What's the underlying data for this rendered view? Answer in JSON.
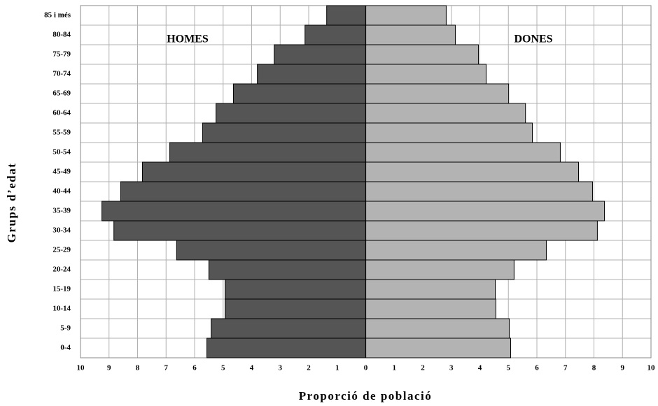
{
  "chart_data": {
    "type": "pyramid",
    "x_label": "Proporció de població",
    "y_label": "Grups d’edat",
    "categories": [
      "0-4",
      "5-9",
      "10-14",
      "15-19",
      "20-24",
      "25-29",
      "30-34",
      "35-39",
      "40-44",
      "45-49",
      "50-54",
      "55-59",
      "60-64",
      "65-69",
      "70-74",
      "75-79",
      "80-84",
      "85 i més"
    ],
    "series": [
      {
        "name": "HOMES",
        "color": "#555555",
        "values": [
          -5.57,
          -5.42,
          -4.93,
          -4.93,
          -5.5,
          -6.63,
          -8.83,
          -9.25,
          -8.59,
          -7.83,
          -6.87,
          -5.72,
          -5.25,
          -4.64,
          -3.8,
          -3.21,
          -2.13,
          -1.37
        ]
      },
      {
        "name": "DONES",
        "color": "#b3b3b3",
        "values": [
          5.08,
          5.03,
          4.56,
          4.54,
          5.2,
          6.33,
          8.12,
          8.37,
          7.95,
          7.46,
          6.82,
          5.84,
          5.6,
          5.01,
          4.22,
          3.95,
          3.14,
          2.82
        ]
      }
    ],
    "xlim": [
      -10,
      10
    ],
    "xticks": [
      {
        "value": -10,
        "label": "10"
      },
      {
        "value": -9,
        "label": "9"
      },
      {
        "value": -8,
        "label": "8"
      },
      {
        "value": -7,
        "label": "7"
      },
      {
        "value": -6,
        "label": "6"
      },
      {
        "value": -5,
        "label": "5"
      },
      {
        "value": -4,
        "label": "4"
      },
      {
        "value": -3,
        "label": "3"
      },
      {
        "value": -2,
        "label": "2"
      },
      {
        "value": -1,
        "label": "1"
      },
      0,
      1,
      2,
      3,
      4,
      5,
      6,
      7,
      8,
      9,
      10
    ],
    "grid": true
  }
}
